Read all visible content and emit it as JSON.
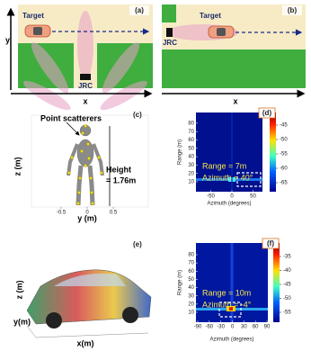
{
  "panels": {
    "a": {
      "label": "(a)",
      "target": "Target",
      "radar": "JRC",
      "x_axis": "x",
      "y_axis": "y"
    },
    "b": {
      "label": "(b)",
      "target": "Target",
      "radar": "JRC",
      "x_axis": "x"
    },
    "c": {
      "label": "(c)",
      "title": "Point scatterers",
      "height_label": [
        "Height",
        "= 1.76m"
      ],
      "z_axis": "z (m)",
      "y_axis": "y (m)",
      "ticks": [
        -0.5,
        0,
        0.5
      ]
    },
    "d": {
      "label": "(d)",
      "y_axis": "Range (m)",
      "x_axis": "Azimuth (degrees)",
      "yticks": [
        80,
        70,
        60,
        50,
        40,
        30,
        20,
        10
      ],
      "xticks": [
        -50,
        0,
        50
      ],
      "colorbar_ticks": [
        -45,
        -50,
        -55,
        -60,
        -65
      ],
      "annotations": [
        "Range = 7m",
        "Azimuth = 40°"
      ]
    },
    "e": {
      "label": "(e)",
      "z_axis": "z (m)",
      "y_axis": "y(m)",
      "x_axis": "x(m)"
    },
    "f": {
      "label": "(f)",
      "y_axis": "Range (m)",
      "x_axis": "Azimuth (degrees)",
      "yticks": [
        80,
        70,
        60,
        50,
        40,
        30,
        20,
        10
      ],
      "xticks": [
        -90,
        -60,
        -30,
        0,
        30,
        60,
        90
      ],
      "colorbar_ticks": [
        -35,
        -40,
        -45,
        -50,
        -55
      ],
      "annotations": [
        "Range = 10m",
        "Azimuth = -4°"
      ]
    }
  }
}
